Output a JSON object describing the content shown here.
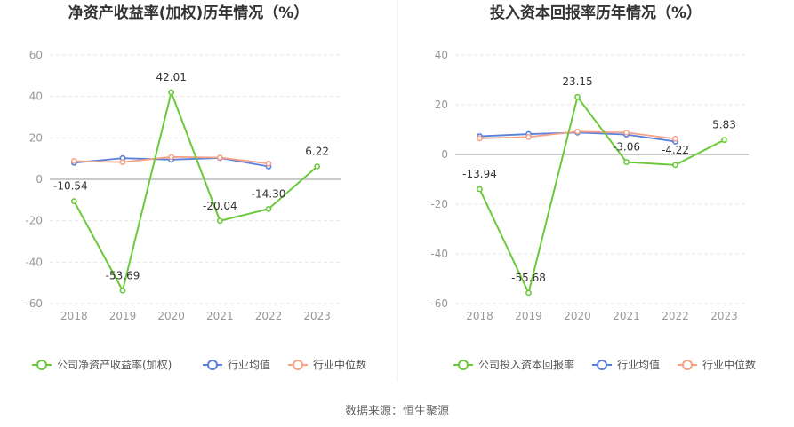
{
  "source_note": "数据来源：恒生聚源",
  "colors": {
    "company": "#6bc93b",
    "average": "#5b7fde",
    "median": "#f5a287",
    "grid": "#e6e6e6",
    "axis": "#999999"
  },
  "chart_data": [
    {
      "type": "line",
      "title": "净资产收益率(加权)历年情况（%）",
      "categories": [
        "2018",
        "2019",
        "2020",
        "2021",
        "2022",
        "2023"
      ],
      "ylim": [
        -60,
        60
      ],
      "yticks": [
        "60",
        "40",
        "20",
        "0",
        "-20",
        "-40",
        "-60"
      ],
      "series": [
        {
          "name": "公司净资产收益率(加权)",
          "key": "company",
          "values": [
            -10.54,
            -53.69,
            42.01,
            -20.04,
            -14.3,
            6.22
          ],
          "labels": [
            "-10.54",
            "-53.69",
            "42.01",
            "-20.04",
            "-14.30",
            "6.22"
          ]
        },
        {
          "name": "行业均值",
          "key": "average",
          "values": [
            8.0,
            10.2,
            9.5,
            10.3,
            6.2,
            null
          ]
        },
        {
          "name": "行业中位数",
          "key": "median",
          "values": [
            8.8,
            8.3,
            10.8,
            10.5,
            7.6,
            null
          ]
        }
      ]
    },
    {
      "type": "line",
      "title": "投入资本回报率历年情况（%）",
      "categories": [
        "2018",
        "2019",
        "2020",
        "2021",
        "2022",
        "2023"
      ],
      "ylim": [
        -60,
        40
      ],
      "yticks": [
        "40",
        "20",
        "0",
        "-20",
        "-40",
        "-60"
      ],
      "series": [
        {
          "name": "公司投入资本回报率",
          "key": "company",
          "values": [
            -13.94,
            -55.68,
            23.15,
            -3.06,
            -4.22,
            5.83
          ],
          "labels": [
            "-13.94",
            "-55.68",
            "23.15",
            "-3.06",
            "-4.22",
            "5.83"
          ]
        },
        {
          "name": "行业均值",
          "key": "average",
          "values": [
            7.3,
            8.2,
            8.8,
            8.0,
            5.2,
            null
          ]
        },
        {
          "name": "行业中位数",
          "key": "median",
          "values": [
            6.5,
            7.0,
            9.2,
            8.8,
            6.3,
            null
          ]
        }
      ]
    }
  ]
}
